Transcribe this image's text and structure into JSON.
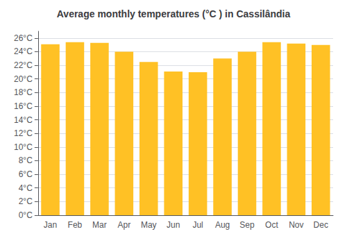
{
  "chart_data": {
    "type": "bar",
    "title": "Average monthly temperatures (°C ) in Cassilândia",
    "categories": [
      "Jan",
      "Feb",
      "Mar",
      "Apr",
      "May",
      "Jun",
      "Jul",
      "Aug",
      "Sep",
      "Oct",
      "Nov",
      "Dec"
    ],
    "values": [
      25.1,
      25.4,
      25.3,
      24.0,
      22.5,
      21.1,
      21.0,
      23.0,
      24.0,
      25.4,
      25.2,
      25.0
    ],
    "color": "#FFC125",
    "ylim": [
      0,
      27
    ],
    "yticks": [
      {
        "value": 0,
        "label": "0°C"
      },
      {
        "value": 2,
        "label": "2°C"
      },
      {
        "value": 4,
        "label": "4°C"
      },
      {
        "value": 6,
        "label": "6°C"
      },
      {
        "value": 8,
        "label": "8°C"
      },
      {
        "value": 10,
        "label": "10°C"
      },
      {
        "value": 12,
        "label": "12°C"
      },
      {
        "value": 14,
        "label": "14°C"
      },
      {
        "value": 16,
        "label": "16°C"
      },
      {
        "value": 18,
        "label": "18°C"
      },
      {
        "value": 20,
        "label": "20°C"
      },
      {
        "value": 22,
        "label": "22°C"
      },
      {
        "value": 24,
        "label": "24°C"
      },
      {
        "value": 26,
        "label": "26°C"
      }
    ],
    "grid": true
  }
}
